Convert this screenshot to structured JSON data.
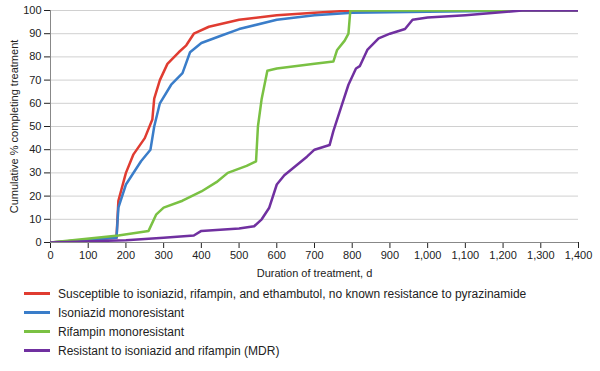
{
  "chart_data": {
    "type": "line",
    "xlabel": "Duration of treatment, d",
    "ylabel": "Cumulative % completing treatment",
    "xlim": [
      0,
      1400
    ],
    "xticks": [
      0,
      100,
      200,
      300,
      400,
      500,
      600,
      700,
      800,
      900,
      {
        "value": 1000,
        "label": "1,000"
      },
      {
        "value": 1100,
        "label": "1,100"
      },
      {
        "value": 1200,
        "label": "1,200"
      },
      {
        "value": 1300,
        "label": "1,300"
      },
      {
        "value": 1400,
        "label": "1,400"
      }
    ],
    "ylim": [
      0,
      100
    ],
    "yticks": [
      0,
      10,
      20,
      30,
      40,
      50,
      60,
      70,
      80,
      90,
      100
    ],
    "grid": true,
    "legend": "bottom",
    "series": [
      {
        "name": "Susceptible to isoniazid, rifampin, and ethambutol, no known resistance to pyrazinamide",
        "color": "#e03c31",
        "x": [
          0,
          175,
          180,
          200,
          220,
          250,
          270,
          275,
          290,
          310,
          340,
          360,
          380,
          420,
          500,
          600,
          700,
          800,
          1400
        ],
        "values": [
          0,
          2,
          18,
          30,
          38,
          45,
          53,
          62,
          70,
          77,
          82,
          85,
          90,
          93,
          96,
          98,
          99,
          100,
          100
        ]
      },
      {
        "name": "Isoniazid monoresistant",
        "color": "#3a7dc9",
        "x": [
          0,
          175,
          180,
          200,
          240,
          265,
          275,
          290,
          320,
          350,
          370,
          400,
          450,
          500,
          600,
          700,
          800,
          1000,
          1250,
          1400
        ],
        "values": [
          0,
          2,
          15,
          25,
          35,
          40,
          50,
          60,
          68,
          73,
          82,
          86,
          89,
          92,
          96,
          98,
          99,
          99.5,
          100,
          100
        ]
      },
      {
        "name": "Rifampin monoresistant",
        "color": "#7ac143",
        "x": [
          0,
          180,
          260,
          280,
          300,
          350,
          400,
          440,
          470,
          520,
          545,
          550,
          560,
          575,
          600,
          700,
          750,
          760,
          780,
          790,
          795,
          1400
        ],
        "values": [
          0,
          3,
          5,
          12,
          15,
          18,
          22,
          26,
          30,
          33,
          35,
          50,
          62,
          74,
          75,
          77,
          78,
          83,
          87,
          90,
          100,
          100
        ]
      },
      {
        "name": "Resistant to isoniazid and rifampin (MDR)",
        "color": "#7030a0",
        "x": [
          0,
          200,
          300,
          380,
          400,
          500,
          540,
          560,
          580,
          600,
          620,
          650,
          680,
          700,
          740,
          750,
          770,
          790,
          810,
          820,
          840,
          870,
          900,
          940,
          960,
          1000,
          1100,
          1250,
          1400
        ],
        "values": [
          0,
          1,
          2,
          3,
          5,
          6,
          7,
          10,
          15,
          25,
          29,
          33,
          37,
          40,
          42,
          48,
          58,
          68,
          75,
          76,
          83,
          88,
          90,
          92,
          96,
          97,
          98,
          100,
          100
        ]
      }
    ]
  }
}
